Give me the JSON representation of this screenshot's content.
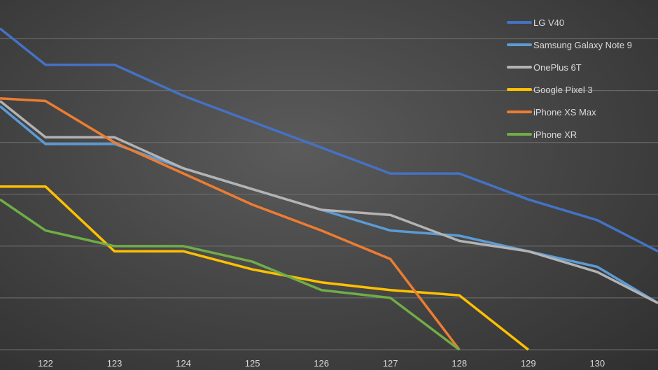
{
  "chart_data": {
    "type": "line",
    "x": [
      121.34,
      122,
      123,
      124,
      125,
      126,
      127,
      128,
      129,
      130,
      130.88
    ],
    "series": [
      {
        "name": "LG V40",
        "color": "#4472c4",
        "points": [
          [
            121.34,
            7.2
          ],
          [
            122,
            6.5
          ],
          [
            123,
            6.5
          ],
          [
            124,
            5.9
          ],
          [
            125,
            5.4
          ],
          [
            126,
            4.9
          ],
          [
            127,
            4.4
          ],
          [
            128,
            4.4
          ],
          [
            129,
            3.9
          ],
          [
            130,
            3.5
          ],
          [
            130.88,
            2.9
          ]
        ]
      },
      {
        "name": "Samsung Galaxy Note 9",
        "color": "#5b9bd5",
        "points": [
          [
            121.34,
            5.7
          ],
          [
            122,
            4.97
          ],
          [
            123,
            4.97
          ],
          [
            124,
            4.5
          ],
          [
            125,
            4.1
          ],
          [
            126,
            3.7
          ],
          [
            127,
            3.3
          ],
          [
            128,
            3.2
          ],
          [
            129,
            2.9
          ],
          [
            130,
            2.6
          ],
          [
            130.88,
            1.9
          ]
        ]
      },
      {
        "name": "OnePlus 6T",
        "color": "#b3b3b3",
        "points": [
          [
            121.34,
            5.8
          ],
          [
            122,
            5.1
          ],
          [
            123,
            5.1
          ],
          [
            124,
            4.5
          ],
          [
            125,
            4.1
          ],
          [
            126,
            3.7
          ],
          [
            127,
            3.6
          ],
          [
            128,
            3.1
          ],
          [
            129,
            2.9
          ],
          [
            130,
            2.5
          ],
          [
            130.88,
            1.9
          ]
        ]
      },
      {
        "name": "Google Pixel 3",
        "color": "#ffc000",
        "points": [
          [
            121.34,
            4.15
          ],
          [
            122,
            4.15
          ],
          [
            123,
            2.9
          ],
          [
            124,
            2.9
          ],
          [
            125,
            2.55
          ],
          [
            126,
            2.3
          ],
          [
            127,
            2.15
          ],
          [
            128,
            2.05
          ],
          [
            129,
            1.0
          ]
        ]
      },
      {
        "name": "iPhone XS Max",
        "color": "#ed7d31",
        "points": [
          [
            121.34,
            5.85
          ],
          [
            122,
            5.8
          ],
          [
            123,
            5.0
          ],
          [
            124,
            4.4
          ],
          [
            125,
            3.8
          ],
          [
            126,
            3.3
          ],
          [
            127,
            2.75
          ],
          [
            128,
            1.0
          ]
        ]
      },
      {
        "name": "iPhone XR",
        "color": "#70ad47",
        "points": [
          [
            121.34,
            3.9
          ],
          [
            122,
            3.3
          ],
          [
            123,
            3.0
          ],
          [
            124,
            3.0
          ],
          [
            125,
            2.7
          ],
          [
            126,
            2.15
          ],
          [
            127,
            2.0
          ],
          [
            128,
            1.0
          ]
        ]
      }
    ],
    "x_ticks": [
      122,
      123,
      124,
      125,
      126,
      127,
      128,
      129,
      130
    ],
    "xlim": [
      121.34,
      130.88
    ],
    "ylim": [
      1.0,
      7.75
    ],
    "y_gridlines": [
      1.0,
      2.0,
      3.0,
      4.0,
      5.0,
      6.0,
      7.0
    ],
    "grid": true,
    "legend_position": "top-right",
    "title": "",
    "xlabel": "",
    "ylabel": ""
  }
}
